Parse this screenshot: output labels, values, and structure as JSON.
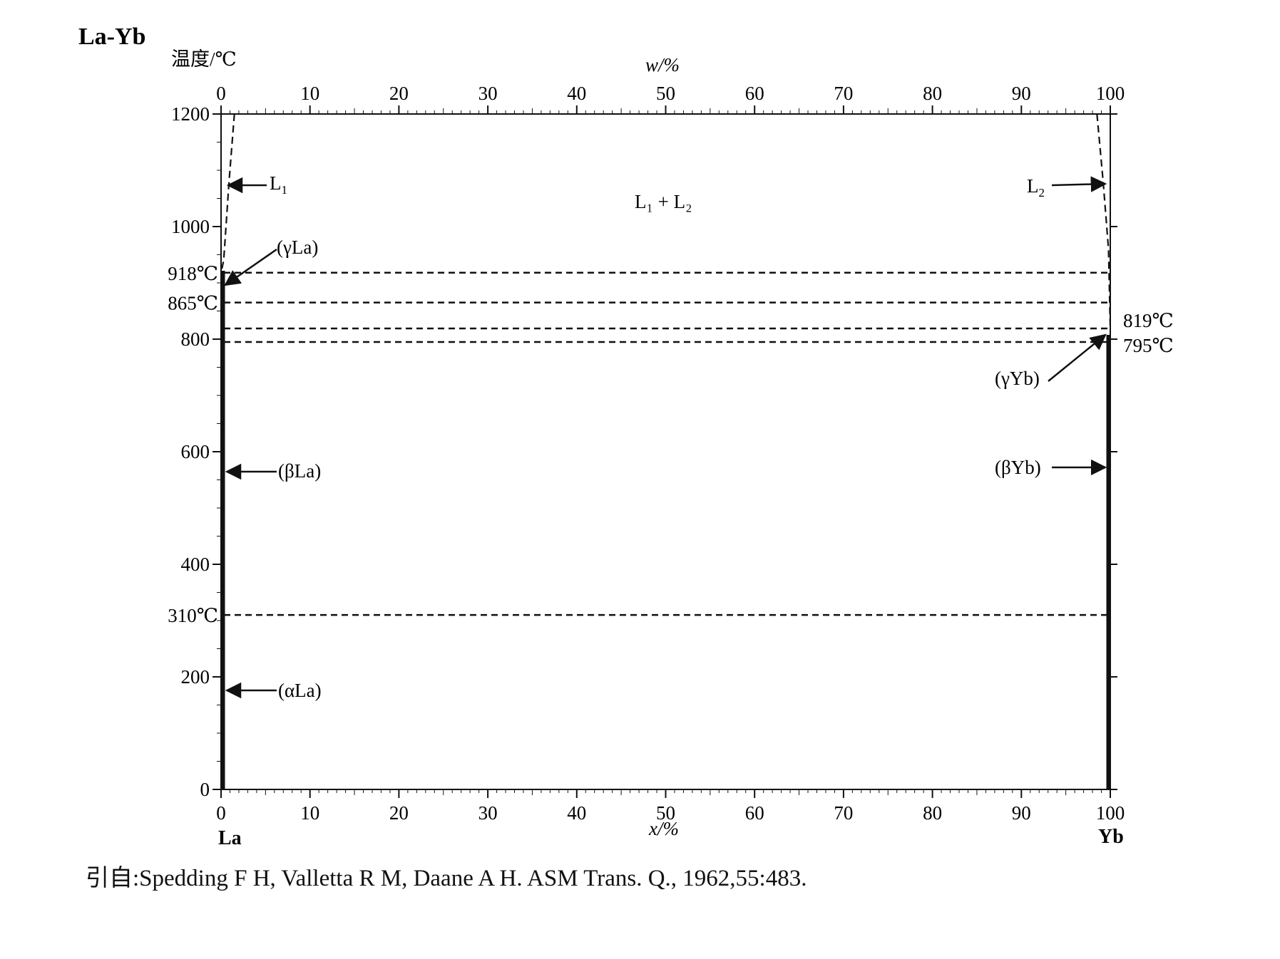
{
  "chart_data": {
    "type": "line",
    "title": "La-Yb",
    "ylabel": "温度/℃",
    "xlabel_bottom": "x/%",
    "xlabel_top": "w/%",
    "x_bottom_ticks": [
      "0",
      "10",
      "20",
      "30",
      "40",
      "50",
      "60",
      "70",
      "80",
      "90",
      "100"
    ],
    "x_top_ticks": [
      "0",
      "10",
      "20",
      "30",
      "40",
      "50",
      "60",
      "70",
      "80",
      "90",
      "100"
    ],
    "y_ticks": [
      "0",
      "200",
      "400",
      "600",
      "800",
      "1000",
      "1200"
    ],
    "xlim": [
      0,
      100
    ],
    "ylim": [
      0,
      1200
    ],
    "left_element": "La",
    "right_element": "Yb",
    "isotherms": [
      {
        "value": 918,
        "label": "918℃",
        "side": "left"
      },
      {
        "value": 865,
        "label": "865℃",
        "side": "left"
      },
      {
        "value": 819,
        "label": "819℃",
        "side": "right"
      },
      {
        "value": 795,
        "label": "795℃",
        "side": "right"
      },
      {
        "value": 310,
        "label": "310℃",
        "side": "left"
      }
    ],
    "phase_labels": {
      "L1": "L",
      "L1_sub": "1",
      "L2": "L",
      "L2_sub": "2",
      "two_liquid": "L₁ + L₂",
      "gamma_La": "(γLa)",
      "beta_La": "(βLa)",
      "alpha_La": "(αLa)",
      "gamma_Yb": "(γYb)",
      "beta_Yb": "(βYb)"
    },
    "miscibility_curves": [
      {
        "name": "L1",
        "points": [
          [
            1.5,
            1200
          ],
          [
            0.9,
            1080
          ],
          [
            0.3,
            940
          ],
          [
            0,
            918
          ]
        ]
      },
      {
        "name": "L2",
        "points": [
          [
            98.5,
            1200
          ],
          [
            99.2,
            1080
          ],
          [
            99.8,
            960
          ],
          [
            100,
            819
          ]
        ]
      }
    ],
    "grid": false
  },
  "citation": "引自:Spedding F H, Valletta R M, Daane A H. ASM Trans. Q., 1962,55:483."
}
